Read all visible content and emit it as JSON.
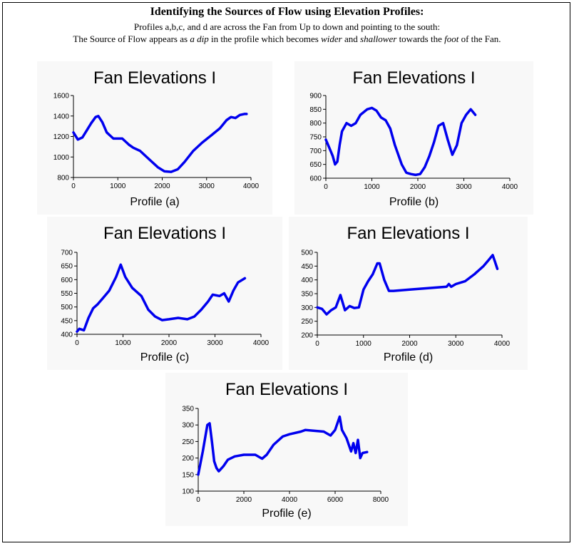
{
  "header": {
    "title": "Identifying the Sources of Flow using Elevation Profiles:",
    "line1": "Profiles a,b,c, and d are across the Fan from Up to down and pointing to the south:",
    "line2_parts": [
      "The Source of Flow appears as ",
      "a dip",
      " in the profile which becomes ",
      "wider",
      " and ",
      "shallower",
      " towards the ",
      "foot",
      " of the Fan."
    ]
  },
  "colors": {
    "line": "#0000ee",
    "axis": "#000000"
  },
  "chart_data": [
    {
      "type": "line",
      "title": "Fan Elevations I",
      "xlabel": "Profile (a)",
      "xlim": [
        0,
        4000
      ],
      "ylim": [
        800,
        1600
      ],
      "xticks": [
        0,
        1000,
        2000,
        3000,
        4000
      ],
      "yticks": [
        800,
        1000,
        1200,
        1400,
        1600
      ],
      "series": [
        {
          "x": [
            0,
            100,
            200,
            300,
            400,
            500,
            560,
            650,
            750,
            900,
            1100,
            1250,
            1350,
            1500,
            1700,
            1900,
            2050,
            2200,
            2350,
            2500,
            2700,
            2900,
            3100,
            3300,
            3450,
            3550,
            3650,
            3750,
            3850,
            3900
          ],
          "y": [
            1240,
            1170,
            1190,
            1260,
            1330,
            1390,
            1400,
            1340,
            1240,
            1180,
            1180,
            1120,
            1090,
            1060,
            980,
            900,
            860,
            855,
            880,
            950,
            1060,
            1140,
            1210,
            1280,
            1360,
            1390,
            1380,
            1410,
            1420,
            1420
          ]
        }
      ]
    },
    {
      "type": "line",
      "title": "Fan Elevations I",
      "xlabel": "Profile (b)",
      "xlim": [
        0,
        4000
      ],
      "ylim": [
        600,
        900
      ],
      "xticks": [
        0,
        1000,
        2000,
        3000,
        4000
      ],
      "yticks": [
        600,
        650,
        700,
        750,
        800,
        850,
        900
      ],
      "series": [
        {
          "x": [
            0,
            100,
            150,
            200,
            250,
            300,
            350,
            450,
            550,
            650,
            750,
            900,
            1000,
            1100,
            1200,
            1300,
            1400,
            1500,
            1650,
            1750,
            1850,
            1950,
            2050,
            2150,
            2250,
            2350,
            2450,
            2550,
            2650,
            2750,
            2850,
            2950,
            3050,
            3150,
            3250
          ],
          "y": [
            740,
            700,
            680,
            650,
            660,
            720,
            770,
            800,
            790,
            800,
            830,
            850,
            855,
            845,
            820,
            810,
            780,
            720,
            650,
            620,
            615,
            612,
            615,
            640,
            680,
            730,
            790,
            800,
            740,
            685,
            720,
            800,
            830,
            850,
            830
          ]
        }
      ]
    },
    {
      "type": "line",
      "title": "Fan Elevations I",
      "xlabel": "Profile (c)",
      "xlim": [
        0,
        4000
      ],
      "ylim": [
        400,
        700
      ],
      "xticks": [
        0,
        1000,
        2000,
        3000,
        4000
      ],
      "yticks": [
        400,
        450,
        500,
        550,
        600,
        650,
        700
      ],
      "series": [
        {
          "x": [
            0,
            50,
            150,
            250,
            350,
            450,
            550,
            700,
            850,
            950,
            1050,
            1200,
            1400,
            1550,
            1700,
            1850,
            2000,
            2200,
            2400,
            2550,
            2700,
            2850,
            2950,
            3100,
            3200,
            3300,
            3400,
            3500,
            3650
          ],
          "y": [
            410,
            420,
            415,
            460,
            495,
            510,
            530,
            560,
            610,
            655,
            610,
            570,
            540,
            490,
            465,
            452,
            455,
            460,
            455,
            465,
            490,
            520,
            545,
            540,
            550,
            520,
            560,
            590,
            605
          ]
        }
      ]
    },
    {
      "type": "line",
      "title": "Fan Elevations I",
      "xlabel": "Profile (d)",
      "xlim": [
        0,
        4000
      ],
      "ylim": [
        200,
        500
      ],
      "xticks": [
        0,
        1000,
        2000,
        3000,
        4000
      ],
      "yticks": [
        200,
        250,
        300,
        350,
        400,
        450,
        500
      ],
      "series": [
        {
          "x": [
            0,
            100,
            200,
            300,
            400,
            500,
            600,
            700,
            800,
            900,
            1000,
            1100,
            1200,
            1300,
            1350,
            1450,
            1550,
            1650,
            2000,
            2400,
            2800,
            2850,
            2900,
            3000,
            3200,
            3400,
            3600,
            3700,
            3800,
            3850,
            3900
          ],
          "y": [
            300,
            295,
            275,
            290,
            300,
            345,
            290,
            305,
            298,
            300,
            365,
            395,
            420,
            460,
            460,
            400,
            360,
            360,
            365,
            370,
            375,
            385,
            375,
            385,
            395,
            420,
            450,
            470,
            490,
            465,
            440
          ]
        }
      ]
    },
    {
      "type": "line",
      "title": "Fan Elevations I",
      "xlabel": "Profile (e)",
      "xlim": [
        0,
        8000
      ],
      "ylim": [
        100,
        350
      ],
      "xticks": [
        0,
        2000,
        4000,
        6000,
        8000
      ],
      "yticks": [
        100,
        150,
        200,
        250,
        300,
        350
      ],
      "series": [
        {
          "x": [
            0,
            100,
            200,
            300,
            400,
            500,
            600,
            700,
            800,
            900,
            1100,
            1300,
            1600,
            2000,
            2500,
            2800,
            3000,
            3300,
            3700,
            4000,
            4500,
            4700,
            5000,
            5500,
            5800,
            6000,
            6200,
            6300,
            6500,
            6700,
            6800,
            6900,
            7000,
            7100,
            7200,
            7400
          ],
          "y": [
            150,
            185,
            220,
            260,
            300,
            305,
            250,
            190,
            170,
            160,
            175,
            195,
            205,
            210,
            210,
            198,
            210,
            240,
            265,
            272,
            280,
            285,
            283,
            280,
            268,
            285,
            325,
            285,
            260,
            220,
            245,
            215,
            255,
            200,
            215,
            218
          ]
        }
      ]
    }
  ]
}
